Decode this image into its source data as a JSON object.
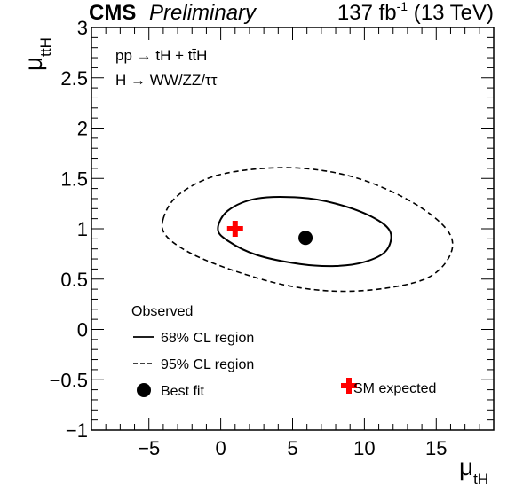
{
  "chart_data": {
    "type": "contour",
    "experiment": "CMS",
    "status": "Preliminary",
    "lumi": "137 fb",
    "lumi_sup": "-1",
    "energy": " (13 TeV)",
    "process_line1": "pp → tH + tt̄H",
    "process_line2": "H → WW/ZZ/ττ",
    "xlabel": "μ",
    "xlabel_sub": "tH",
    "ylabel": "μ",
    "ylabel_sub": "ttH",
    "xlim": [
      -9,
      19
    ],
    "ylim": [
      -1,
      3
    ],
    "xticks": [
      -5,
      0,
      5,
      10,
      15
    ],
    "xtick_labels": [
      "−5",
      "0",
      "5",
      "10",
      "15"
    ],
    "yticks": [
      -1,
      -0.5,
      0,
      0.5,
      1,
      1.5,
      2,
      2.5,
      3
    ],
    "ytick_labels": [
      "−1",
      "−0.5",
      "0",
      "0.5",
      "1",
      "1.5",
      "2",
      "2.5",
      "3"
    ],
    "best_fit": {
      "x": 5.9,
      "y": 0.91
    },
    "sm_expected": {
      "x": 1,
      "y": 1
    },
    "contour_68": {
      "x": [
        -0.2,
        0.5,
        2.5,
        5.5,
        8.0,
        10.5,
        11.8,
        11.5,
        10.0,
        8.0,
        5.5,
        2.5,
        0.5,
        -0.2
      ],
      "y": [
        1.0,
        1.18,
        1.3,
        1.31,
        1.25,
        1.12,
        0.97,
        0.78,
        0.67,
        0.63,
        0.65,
        0.74,
        0.88,
        1.0
      ]
    },
    "contour_95": {
      "x": [
        -4.0,
        -3.0,
        -0.5,
        3.0,
        6.5,
        10.0,
        13.5,
        15.8,
        16.0,
        14.5,
        11.5,
        8.0,
        4.5,
        1.0,
        -2.0,
        -3.8,
        -4.0
      ],
      "y": [
        1.1,
        1.33,
        1.52,
        1.6,
        1.59,
        1.48,
        1.25,
        0.98,
        0.75,
        0.52,
        0.41,
        0.38,
        0.44,
        0.58,
        0.75,
        0.93,
        1.1
      ]
    },
    "legend": {
      "header": "Observed",
      "cl68": "68% CL region",
      "cl95": "95% CL region",
      "best_fit": "Best fit",
      "sm": "SM expected"
    },
    "colors": {
      "sm_marker": "#ff0000",
      "best_fit_marker": "#000000",
      "line": "#000000"
    }
  }
}
